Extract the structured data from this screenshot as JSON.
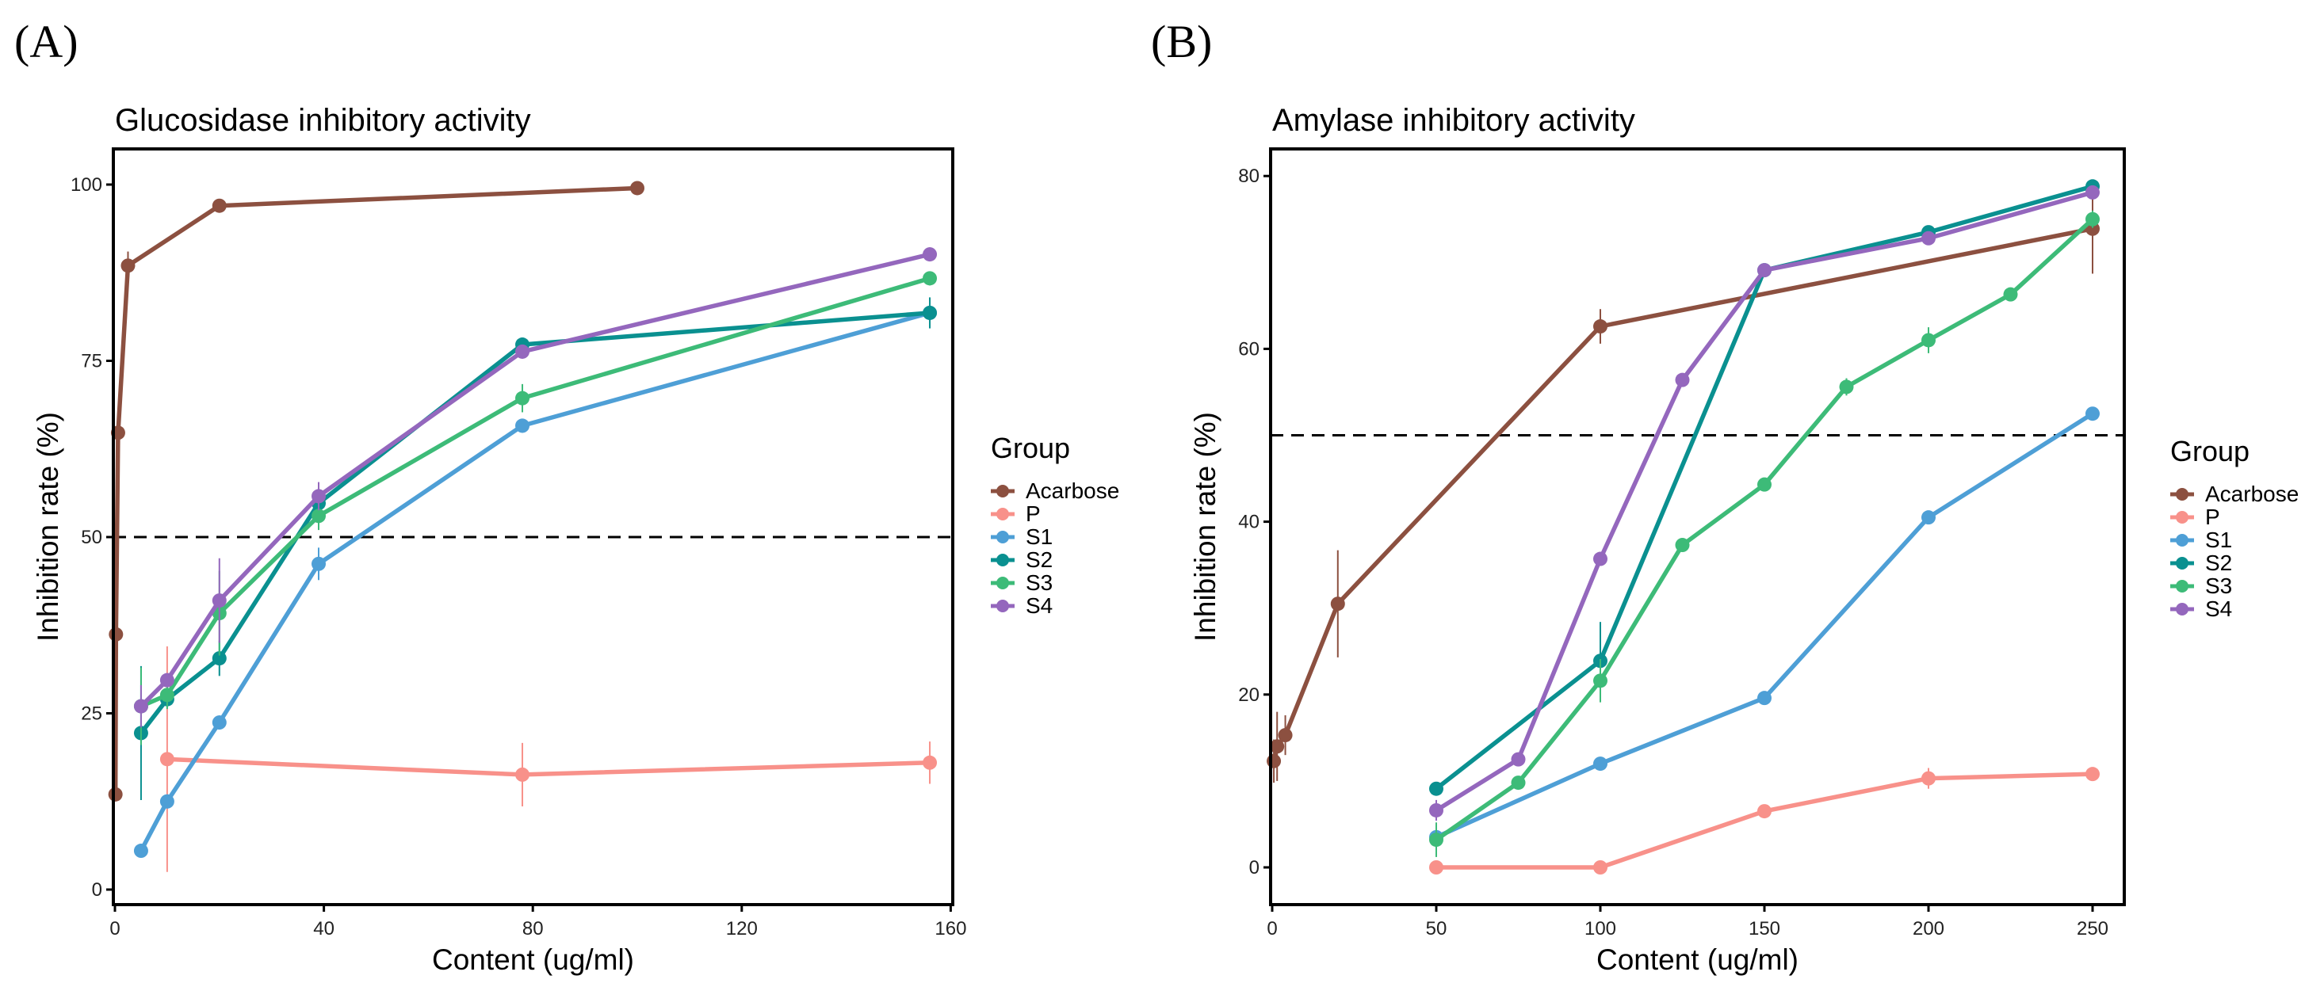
{
  "chart_data": [
    {
      "type": "line",
      "panel_label": "(A)",
      "title": "Glucosidase inhibitory activity",
      "xlabel": "Content (ug/ml)",
      "ylabel": "Inhibition rate (%)",
      "xlim": [
        0,
        160
      ],
      "ylim": [
        0,
        100
      ],
      "xticks": [
        0,
        40,
        80,
        120,
        160
      ],
      "yticks": [
        0,
        25,
        50,
        75,
        100
      ],
      "reference_line": 50,
      "grid": false,
      "legend": {
        "title": "Group",
        "position": "right"
      },
      "series": [
        {
          "name": "Acarbose",
          "color": "#8C5040",
          "x": [
            0.1,
            0.2,
            0.6,
            2.5,
            20,
            100
          ],
          "y": [
            13.5,
            36.2,
            64.8,
            88.5,
            97,
            99.5
          ],
          "err": [
            1,
            1,
            1,
            2,
            0.5,
            0.5
          ]
        },
        {
          "name": "P",
          "color": "#F8918A",
          "x": [
            10,
            78,
            156
          ],
          "y": [
            18.5,
            16.3,
            18
          ],
          "err": [
            16,
            4.5,
            3
          ]
        },
        {
          "name": "S1",
          "color": "#4E9FD6",
          "x": [
            5,
            10,
            20,
            39,
            78,
            156
          ],
          "y": [
            5.5,
            12.5,
            23.7,
            46.2,
            65.8,
            81.8
          ],
          "err": [
            0.5,
            1,
            1,
            2.3,
            1,
            1
          ]
        },
        {
          "name": "S2",
          "color": "#0A9090",
          "x": [
            5,
            10,
            20,
            39,
            78,
            156
          ],
          "y": [
            22.2,
            27,
            32.8,
            54.8,
            77.3,
            81.8
          ],
          "err": [
            9.5,
            1,
            2.5,
            2,
            1,
            2.2
          ]
        },
        {
          "name": "S3",
          "color": "#3DBB78",
          "x": [
            5,
            10,
            20,
            39,
            78,
            156
          ],
          "y": [
            26,
            27.6,
            39.2,
            53,
            69.7,
            86.7
          ],
          "err": [
            5.5,
            2,
            6,
            2,
            2,
            1
          ]
        },
        {
          "name": "S4",
          "color": "#9467BD",
          "x": [
            5,
            10,
            20,
            39,
            78,
            156
          ],
          "y": [
            26,
            29.7,
            41,
            55.8,
            76.3,
            90.1
          ],
          "err": [
            3,
            1,
            6,
            2,
            1,
            1
          ]
        }
      ]
    },
    {
      "type": "line",
      "panel_label": "(B)",
      "title": "Amylase inhibitory activity",
      "xlabel": "Content (ug/ml)",
      "ylabel": "Inhibition rate (%)",
      "xlim": [
        0,
        260
      ],
      "ylim": [
        0,
        80
      ],
      "xticks": [
        0,
        50,
        100,
        150,
        200,
        250
      ],
      "yticks": [
        0,
        20,
        40,
        60,
        80
      ],
      "reference_line": 50,
      "grid": false,
      "legend": {
        "title": "Group",
        "position": "right"
      },
      "series": [
        {
          "name": "Acarbose",
          "color": "#8C5040",
          "x": [
            0.5,
            1.5,
            4,
            20,
            100,
            250
          ],
          "y": [
            12.3,
            14,
            15.3,
            30.5,
            62.6,
            73.9
          ],
          "err": [
            2.5,
            4,
            2.3,
            6.2,
            2,
            5.2
          ]
        },
        {
          "name": "P",
          "color": "#F8918A",
          "x": [
            50,
            100,
            150,
            200,
            250
          ],
          "y": [
            0,
            0,
            6.5,
            10.3,
            10.8
          ],
          "err": [
            0.3,
            0.3,
            0.5,
            1.2,
            0.5
          ]
        },
        {
          "name": "S1",
          "color": "#4E9FD6",
          "x": [
            50,
            100,
            150,
            200,
            250
          ],
          "y": [
            3.5,
            12,
            19.6,
            40.5,
            52.5
          ],
          "err": [
            0.5,
            0.8,
            0.5,
            0.5,
            0.5
          ]
        },
        {
          "name": "S2",
          "color": "#0A9090",
          "x": [
            50,
            100,
            150,
            200,
            250
          ],
          "y": [
            9.1,
            23.9,
            69.1,
            73.5,
            78.8
          ],
          "err": [
            0.5,
            4.5,
            0.5,
            0.5,
            0.5
          ]
        },
        {
          "name": "S3",
          "color": "#3DBB78",
          "x": [
            50,
            75,
            100,
            125,
            150,
            175,
            200,
            225,
            250
          ],
          "y": [
            3.2,
            9.8,
            21.6,
            37.3,
            44.3,
            55.6,
            61,
            66.3,
            75
          ],
          "err": [
            2,
            0.5,
            2.5,
            0.5,
            0.5,
            1,
            1.5,
            0.5,
            1
          ]
        },
        {
          "name": "S4",
          "color": "#9467BD",
          "x": [
            50,
            75,
            100,
            125,
            150,
            200,
            250
          ],
          "y": [
            6.6,
            12.5,
            35.7,
            56.4,
            69.1,
            72.8,
            78.1
          ],
          "err": [
            1.2,
            0.5,
            0.5,
            0.5,
            0.5,
            0.5,
            0.5
          ]
        }
      ]
    }
  ]
}
